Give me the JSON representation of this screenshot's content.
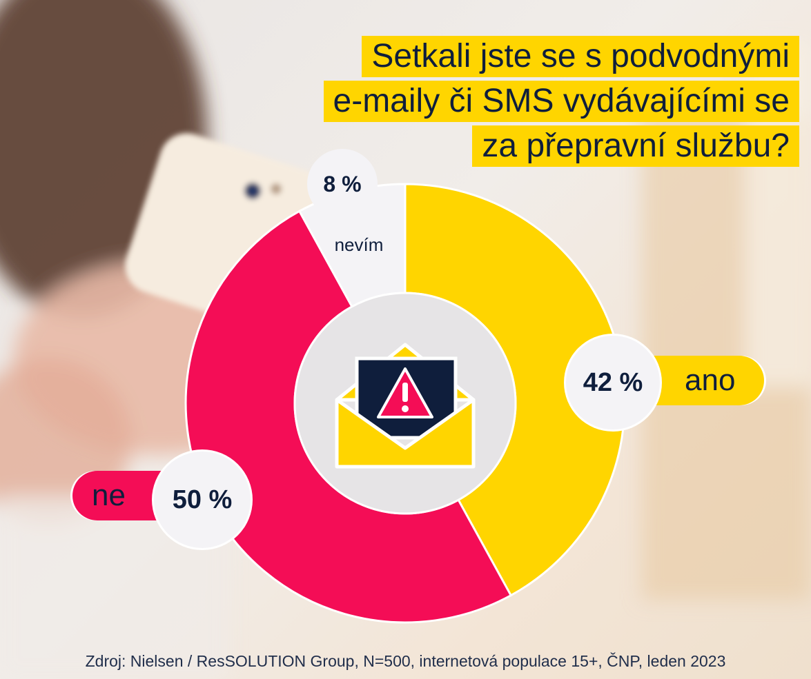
{
  "title": {
    "line1": "Setkali jste se s podvodnými",
    "line2": "e-maily či SMS vydávajícími se",
    "line3": "za přepravní službu?"
  },
  "chart_data": {
    "type": "pie",
    "variant": "donut",
    "categories": [
      "ano",
      "ne",
      "nevím"
    ],
    "values": [
      42,
      50,
      8
    ],
    "value_labels": [
      "42 %",
      "50 %",
      "8 %"
    ],
    "colors": [
      "#ffd500",
      "#f40d56",
      "#f4f3f6"
    ]
  },
  "labels": {
    "ano_pct": "42 %",
    "ano": "ano",
    "ne_pct": "50 %",
    "ne": "ne",
    "nevim_pct": "8 %",
    "nevim": "nevím"
  },
  "center_icon": "envelope-warning-icon",
  "source": "Zdroj: Nielsen / ResSOLUTION Group, N=500, internetová populace 15+, ČNP, leden 2023"
}
